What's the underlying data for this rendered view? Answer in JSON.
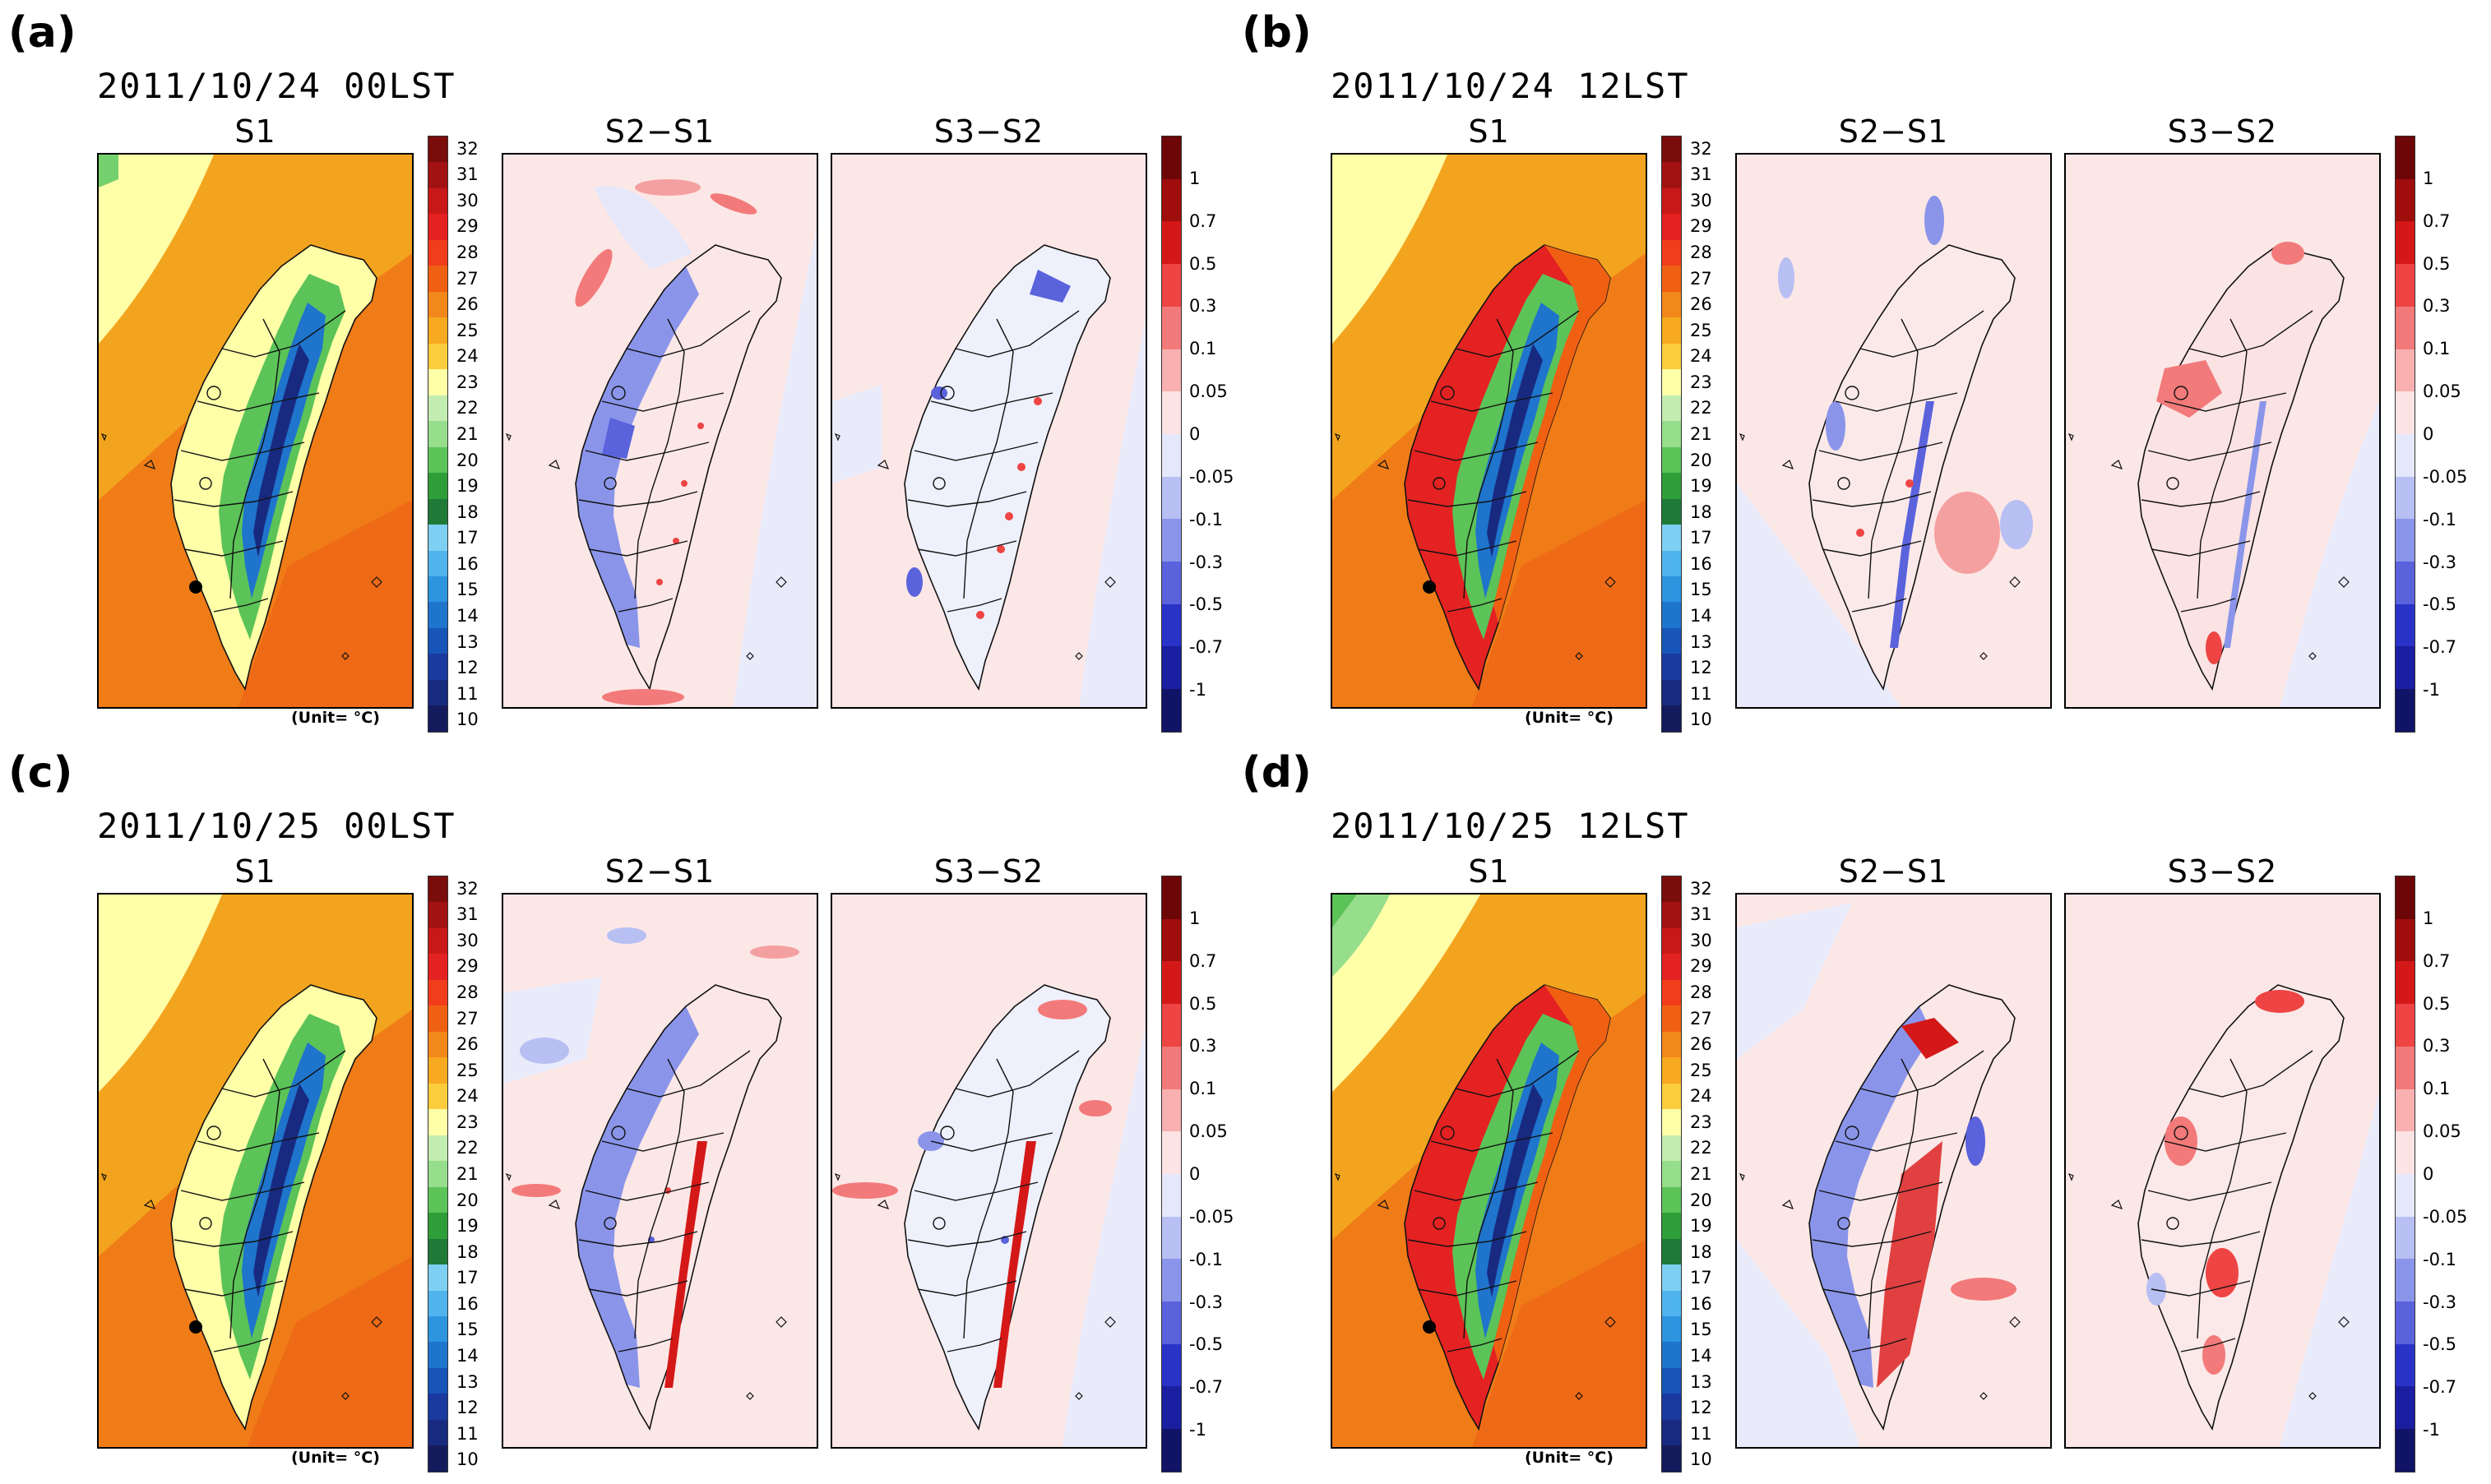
{
  "panels": [
    {
      "id": "a",
      "label": "(a)",
      "title": "2011/10/24  00LST",
      "s1_variant": "cool"
    },
    {
      "id": "b",
      "label": "(b)",
      "title": "2011/10/24  12LST",
      "s1_variant": "warm"
    },
    {
      "id": "c",
      "label": "(c)",
      "title": "2011/10/25  00LST",
      "s1_variant": "cool"
    },
    {
      "id": "d",
      "label": "(d)",
      "title": "2011/10/25  12LST",
      "s1_variant": "warm"
    }
  ],
  "map_titles": {
    "s1": "S1",
    "s2s1": "S2−S1",
    "s3s2": "S3−S2"
  },
  "unit_label": "(Unit= °C)",
  "temp_colorbar": {
    "ticks": [
      "32",
      "31",
      "30",
      "29",
      "28",
      "27",
      "26",
      "25",
      "24",
      "23",
      "22",
      "21",
      "20",
      "19",
      "18",
      "17",
      "16",
      "15",
      "14",
      "13",
      "12",
      "11",
      "10"
    ],
    "colors": [
      "#7a0c0c",
      "#a31212",
      "#c81818",
      "#e42222",
      "#f23d1a",
      "#f06013",
      "#f2871a",
      "#f7a91f",
      "#fbcd3c",
      "#ffffa8",
      "#c2ecb0",
      "#96dd8c",
      "#5cc358",
      "#2e9e38",
      "#1f7a38",
      "#7ed0f2",
      "#4fb4ec",
      "#2d94e0",
      "#1f74cc",
      "#1755b8",
      "#1a3aa0",
      "#182a80",
      "#141b5c"
    ]
  },
  "diff_colorbar": {
    "ticks": [
      "1",
      "0.7",
      "0.5",
      "0.3",
      "0.1",
      "0.05",
      "0",
      "-0.05",
      "-0.1",
      "-0.3",
      "-0.5",
      "-0.7",
      "-1"
    ],
    "colors": [
      "#6d0606",
      "#a00d0d",
      "#d41818",
      "#ee4444",
      "#f37a7a",
      "#f8b0b0",
      "#fde4e4",
      "#e5e8fb",
      "#b7bff3",
      "#8a95ea",
      "#5a62dc",
      "#2a33c8",
      "#1a1ea0",
      "#111466"
    ]
  }
}
